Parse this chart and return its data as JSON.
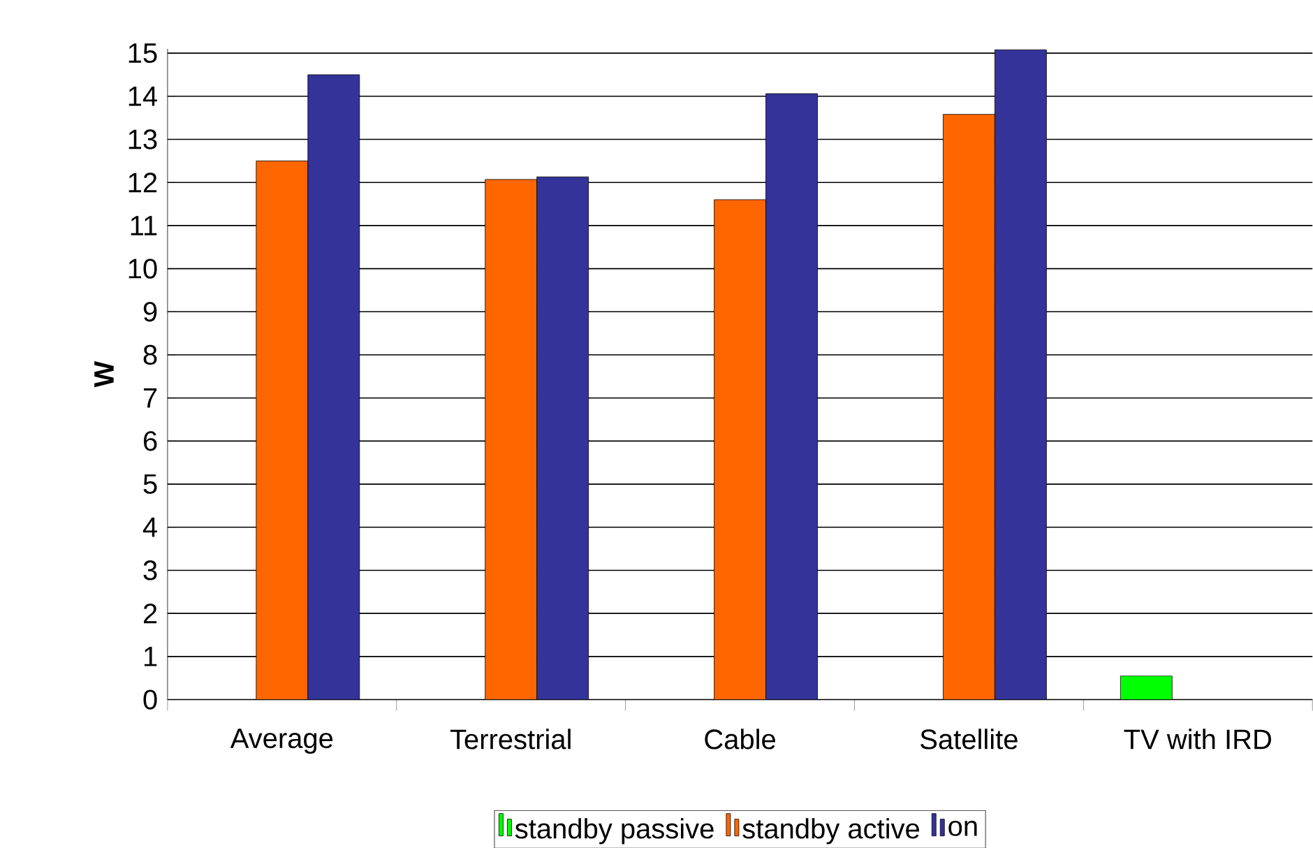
{
  "chart_data": {
    "type": "bar",
    "ylabel": "W",
    "categories": [
      "Average",
      "Terrestrial",
      "Cable",
      "Satellite",
      "TV with IRD"
    ],
    "series": [
      {
        "name": "standby passive",
        "color": "#00ff00",
        "values": [
          null,
          null,
          null,
          null,
          0.55
        ]
      },
      {
        "name": "standby active",
        "color": "#ff6600",
        "values": [
          12.5,
          12.07,
          11.6,
          13.58,
          null
        ]
      },
      {
        "name": "on",
        "color": "#333399",
        "values": [
          14.5,
          12.13,
          14.06,
          15.08,
          null
        ]
      }
    ],
    "ylim": [
      0,
      15.1
    ],
    "yticks": [
      0,
      1,
      2,
      3,
      4,
      5,
      6,
      7,
      8,
      9,
      10,
      11,
      12,
      13,
      14,
      15
    ],
    "grid": "y",
    "legend": "bottom"
  }
}
